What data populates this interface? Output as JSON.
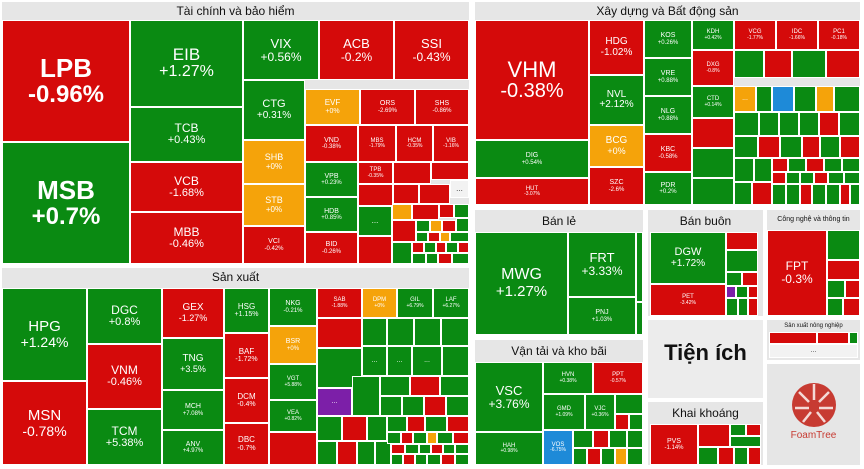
{
  "colors": {
    "green": "#0a8a12",
    "red": "#d50a0a",
    "orange": "#f5a30a",
    "purple": "#7c1fa8",
    "blue": "#1e8ad8",
    "panel": "#e6e6e6"
  },
  "sectors": {
    "tai_chinh": "Tài chính và bảo hiểm",
    "xay_dung": "Xây dựng và Bất động sản",
    "san_xuat": "Sản xuất",
    "ban_le": "Bán lẻ",
    "ban_buon": "Bán buôn",
    "cong_nghe": "Công nghệ và thông tin",
    "van_tai": "Vận tải và kho bãi",
    "tien_ich": "Tiện ích",
    "nong_nghiep": "Sản xuất nông nghiệp",
    "khai_khoang": "Khai khoáng"
  },
  "tiles": {
    "LPB": {
      "sym": "LPB",
      "chg": "-0.96%"
    },
    "MSB": {
      "sym": "MSB",
      "chg": "+0.7%"
    },
    "EIB": {
      "sym": "EIB",
      "chg": "+1.27%"
    },
    "TCB": {
      "sym": "TCB",
      "chg": "+0.43%"
    },
    "VCB": {
      "sym": "VCB",
      "chg": "-1.68%"
    },
    "MBB": {
      "sym": "MBB",
      "chg": "-0.46%"
    },
    "VIX": {
      "sym": "VIX",
      "chg": "+0.56%"
    },
    "ACB": {
      "sym": "ACB",
      "chg": "-0.2%"
    },
    "SSI": {
      "sym": "SSI",
      "chg": "-0.43%"
    },
    "CTG": {
      "sym": "CTG",
      "chg": "+0.31%"
    },
    "EVF": {
      "sym": "EVF",
      "chg": "+0%"
    },
    "ORS": {
      "sym": "ORS",
      "chg": "-2.69%"
    },
    "SHS": {
      "sym": "SHS",
      "chg": "-0.86%"
    },
    "SHB": {
      "sym": "SHB",
      "chg": "+0%"
    },
    "VND": {
      "sym": "VND",
      "chg": "-0.38%"
    },
    "MBS": {
      "sym": "MBS",
      "chg": "-1.79%"
    },
    "HCM": {
      "sym": "HCM",
      "chg": "-0.35%"
    },
    "VIB": {
      "sym": "VIB",
      "chg": "-1.16%"
    },
    "STB": {
      "sym": "STB",
      "chg": "+0%"
    },
    "VPB": {
      "sym": "VPB",
      "chg": "+0.23%"
    },
    "TPB": {
      "sym": "TPB",
      "chg": "-0.35%"
    },
    "HDB": {
      "sym": "HDB",
      "chg": "+0.85%"
    },
    "VCI": {
      "sym": "VCI",
      "chg": "-0.42%"
    },
    "BID": {
      "sym": "BID",
      "chg": "-0.26%"
    },
    "VHM": {
      "sym": "VHM",
      "chg": "-0.38%"
    },
    "HDG": {
      "sym": "HDG",
      "chg": "-1.02%"
    },
    "KOS": {
      "sym": "KOS",
      "chg": "+0.26%"
    },
    "KDH": {
      "sym": "KDH",
      "chg": "+0.42%"
    },
    "VCG": {
      "sym": "VCG",
      "chg": "-1.77%"
    },
    "IDC": {
      "sym": "IDC",
      "chg": "-1.66%"
    },
    "PC1": {
      "sym": "PC1",
      "chg": "-0.18%"
    },
    "VRE": {
      "sym": "VRE",
      "chg": "+0.88%"
    },
    "DXG": {
      "sym": "DXG",
      "chg": "-0.8%"
    },
    "NVL": {
      "sym": "NVL",
      "chg": "+2.12%"
    },
    "NLG": {
      "sym": "NLG",
      "chg": "+0.88%"
    },
    "CTD": {
      "sym": "CTD",
      "chg": "+0.14%"
    },
    "DIG": {
      "sym": "DIG",
      "chg": "+0.54%"
    },
    "BCG": {
      "sym": "BCG",
      "chg": "+0%"
    },
    "KBC": {
      "sym": "KBC",
      "chg": "-0.58%"
    },
    "HUT": {
      "sym": "HUT",
      "chg": "-3.07%"
    },
    "SZC": {
      "sym": "SZC",
      "chg": "-2.6%"
    },
    "PDR": {
      "sym": "PDR",
      "chg": "+0.2%"
    },
    "HPG": {
      "sym": "HPG",
      "chg": "+1.24%"
    },
    "MSN": {
      "sym": "MSN",
      "chg": "-0.78%"
    },
    "DGC": {
      "sym": "DGC",
      "chg": "+0.8%"
    },
    "VNM": {
      "sym": "VNM",
      "chg": "-0.46%"
    },
    "TCM": {
      "sym": "TCM",
      "chg": "+5.38%"
    },
    "GEX": {
      "sym": "GEX",
      "chg": "-1.27%"
    },
    "TNG": {
      "sym": "TNG",
      "chg": "+3.5%"
    },
    "MCH": {
      "sym": "MCH",
      "chg": "+7.08%"
    },
    "ANV": {
      "sym": "ANV",
      "chg": "+4.97%"
    },
    "HSG": {
      "sym": "HSG",
      "chg": "+1.15%"
    },
    "BAF": {
      "sym": "BAF",
      "chg": "-1.72%"
    },
    "DCM": {
      "sym": "DCM",
      "chg": "-0.4%"
    },
    "DBC": {
      "sym": "DBC",
      "chg": "-0.7%"
    },
    "NKG": {
      "sym": "NKG",
      "chg": "-0.21%"
    },
    "BSR": {
      "sym": "BSR",
      "chg": "+0%"
    },
    "VGT": {
      "sym": "VGT",
      "chg": "+5.88%"
    },
    "VEA": {
      "sym": "VEA",
      "chg": "+0.82%"
    },
    "SAB": {
      "sym": "SAB",
      "chg": "-1.88%"
    },
    "DPM": {
      "sym": "DPM",
      "chg": "+0%"
    },
    "GIL": {
      "sym": "GIL",
      "chg": "+6.79%"
    },
    "LAF": {
      "sym": "LAF",
      "chg": "+6.27%"
    },
    "MWG": {
      "sym": "MWG",
      "chg": "+1.27%"
    },
    "FRT": {
      "sym": "FRT",
      "chg": "+3.33%"
    },
    "PNJ": {
      "sym": "PNJ",
      "chg": "+1.03%"
    },
    "DGW": {
      "sym": "DGW",
      "chg": "+1.72%"
    },
    "PET": {
      "sym": "PET",
      "chg": "-3.42%"
    },
    "FPT": {
      "sym": "FPT",
      "chg": "-0.3%"
    },
    "VSC": {
      "sym": "VSC",
      "chg": "+3.76%"
    },
    "HVN": {
      "sym": "HVN",
      "chg": "+0.38%"
    },
    "PPT": {
      "sym": "PPT",
      "chg": "-0.57%"
    },
    "GMD": {
      "sym": "GMD",
      "chg": "+1.09%"
    },
    "VJC": {
      "sym": "VJC",
      "chg": "+0.36%"
    },
    "HAH": {
      "sym": "HAH",
      "chg": "+0.98%"
    },
    "VOS": {
      "sym": "VOS",
      "chg": "-6.75%"
    },
    "PVS": {
      "sym": "PVS",
      "chg": "-1.14%"
    }
  },
  "ellipsis": "...",
  "logo": {
    "text": "FoamTree"
  }
}
